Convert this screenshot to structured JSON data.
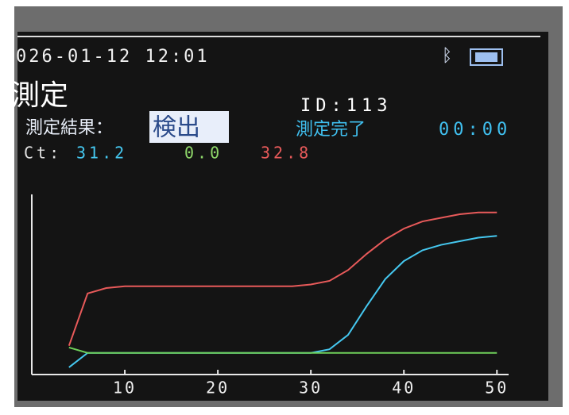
{
  "status_bar": {
    "datetime": "026-01-12 12:01"
  },
  "screen": {
    "title": "測定",
    "id_label": "ID:113",
    "result_label": "測定結果：",
    "result": "検出",
    "status": "測定完了",
    "timer": "00:00",
    "ct_label": "Ct:",
    "ct_values": [
      "31.2",
      "0.0",
      "32.8"
    ]
  },
  "chart_data": {
    "type": "line",
    "x": [
      4,
      6,
      8,
      10,
      12,
      14,
      16,
      18,
      20,
      22,
      24,
      26,
      28,
      30,
      32,
      34,
      36,
      38,
      40,
      42,
      44,
      46,
      48,
      50
    ],
    "series": [
      {
        "color": "#e85a5a",
        "values": [
          16,
          45,
          48,
          49,
          49,
          49,
          49,
          49,
          49,
          49,
          49,
          49,
          49,
          50,
          52,
          58,
          67,
          75,
          81,
          85,
          87,
          89,
          90,
          90
        ]
      },
      {
        "color": "#45c8f0",
        "values": [
          4,
          12,
          12,
          12,
          12,
          12,
          12,
          12,
          12,
          12,
          12,
          12,
          12,
          12,
          14,
          22,
          38,
          53,
          63,
          69,
          72,
          74,
          76,
          77
        ]
      },
      {
        "color": "#6fcf5a",
        "values": [
          15,
          12,
          12,
          12,
          12,
          12,
          12,
          12,
          12,
          12,
          12,
          12,
          12,
          12,
          12,
          12,
          12,
          12,
          12,
          12,
          12,
          12,
          12,
          12
        ]
      }
    ],
    "xlim": [
      0,
      51
    ],
    "ylim": [
      0,
      100
    ],
    "xticks": [
      10,
      20,
      30,
      40,
      50
    ]
  }
}
